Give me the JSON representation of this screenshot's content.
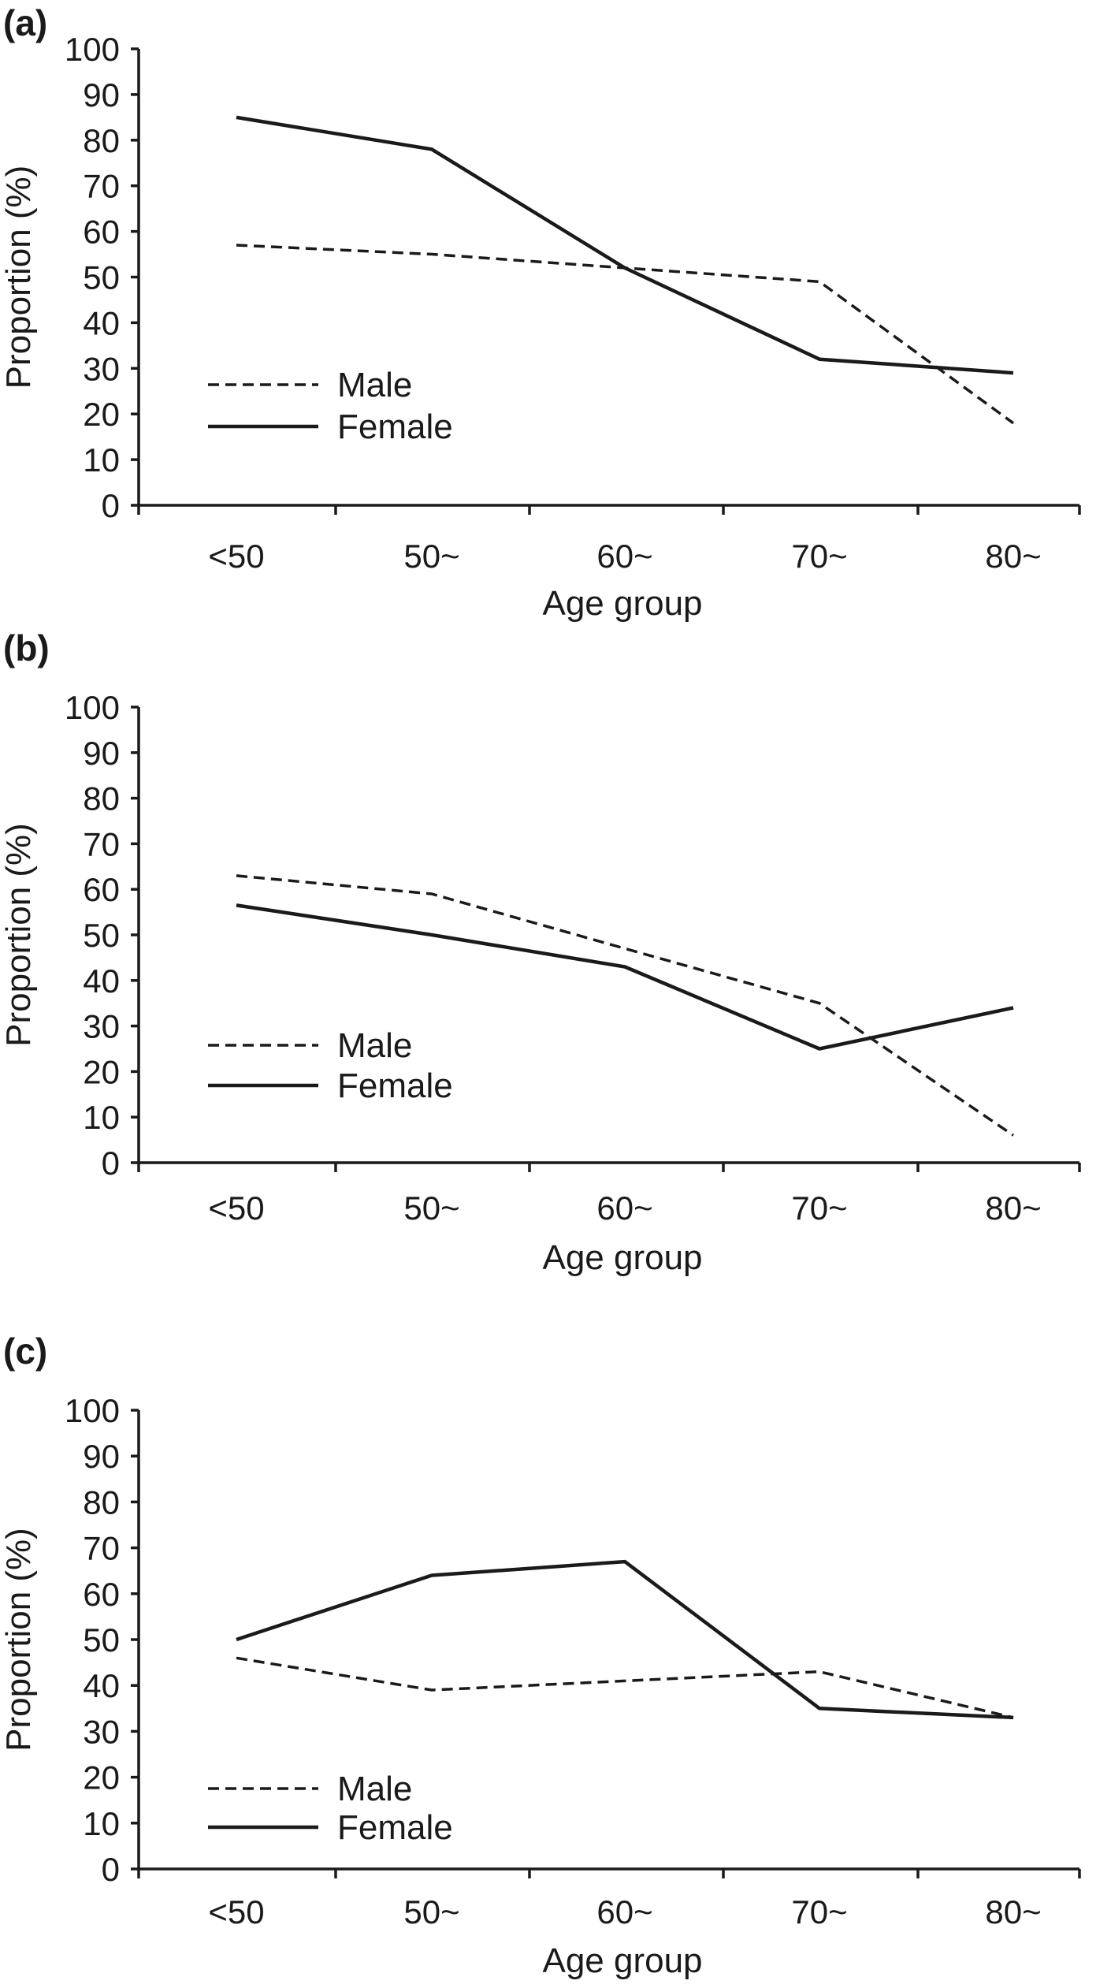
{
  "chart_data": [
    {
      "type": "line",
      "panel_label": "(a)",
      "categories": [
        "<50",
        "50~",
        "60~",
        "70~",
        "80~"
      ],
      "xlabel": "Age group",
      "ylabel": "Proportion (%)",
      "ylim": [
        0,
        100
      ],
      "yticks": [
        0,
        10,
        20,
        30,
        40,
        50,
        60,
        70,
        80,
        90,
        100
      ],
      "grid": false,
      "legend_position": "lower-left",
      "series": [
        {
          "name": "Male",
          "line_style": "dashed",
          "color": "#1a1a1a",
          "values": [
            57,
            55,
            52,
            49,
            18
          ]
        },
        {
          "name": "Female",
          "line_style": "solid",
          "color": "#1a1a1a",
          "values": [
            85,
            78,
            52,
            32,
            29
          ]
        }
      ]
    },
    {
      "type": "line",
      "panel_label": "(b)",
      "categories": [
        "<50",
        "50~",
        "60~",
        "70~",
        "80~"
      ],
      "xlabel": "Age group",
      "ylabel": "Proportion (%)",
      "ylim": [
        0,
        100
      ],
      "yticks": [
        0,
        10,
        20,
        30,
        40,
        50,
        60,
        70,
        80,
        90,
        100
      ],
      "grid": false,
      "legend_position": "lower-left",
      "series": [
        {
          "name": "Male",
          "line_style": "dashed",
          "color": "#1a1a1a",
          "values": [
            63,
            59,
            47,
            35,
            6
          ]
        },
        {
          "name": "Female",
          "line_style": "solid",
          "color": "#1a1a1a",
          "values": [
            56.5,
            50,
            43,
            25,
            34
          ]
        }
      ]
    },
    {
      "type": "line",
      "panel_label": "(c)",
      "categories": [
        "<50",
        "50~",
        "60~",
        "70~",
        "80~"
      ],
      "xlabel": "Age group",
      "ylabel": "Proportion (%)",
      "ylim": [
        0,
        100
      ],
      "yticks": [
        0,
        10,
        20,
        30,
        40,
        50,
        60,
        70,
        80,
        90,
        100
      ],
      "grid": false,
      "legend_position": "lower-left",
      "series": [
        {
          "name": "Male",
          "line_style": "dashed",
          "color": "#1a1a1a",
          "values": [
            46,
            39,
            41,
            43,
            33
          ]
        },
        {
          "name": "Female",
          "line_style": "solid",
          "color": "#1a1a1a",
          "values": [
            50,
            64,
            67,
            35,
            33
          ]
        }
      ]
    }
  ]
}
